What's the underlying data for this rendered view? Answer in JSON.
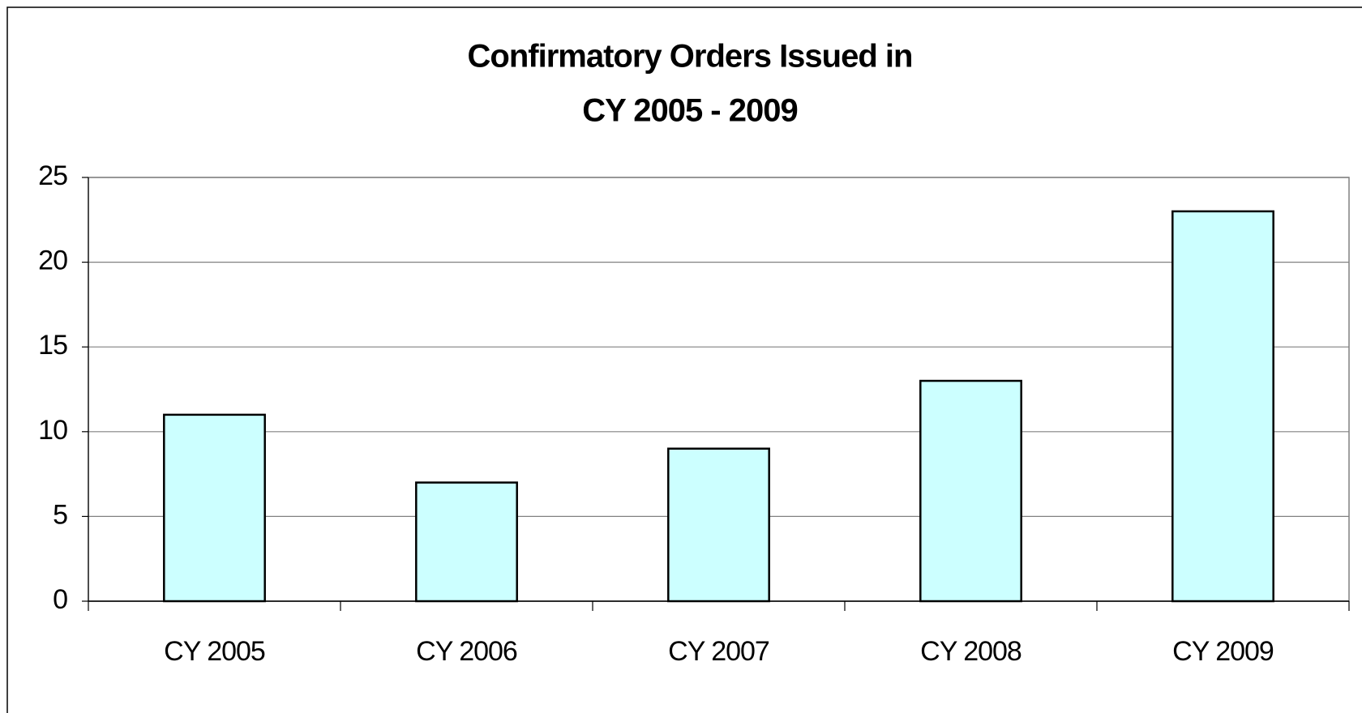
{
  "chart_data": {
    "type": "bar",
    "title": [
      "Confirmatory Orders Issued in",
      "CY 2005 - 2009"
    ],
    "categories": [
      "CY 2005",
      "CY 2006",
      "CY 2007",
      "CY 2008",
      "CY 2009"
    ],
    "values": [
      11,
      7,
      9,
      13,
      23
    ],
    "color": "#ccffff",
    "ylim": [
      0,
      25
    ],
    "yticks": [
      0,
      5,
      10,
      15,
      20,
      25
    ],
    "grid": true
  }
}
